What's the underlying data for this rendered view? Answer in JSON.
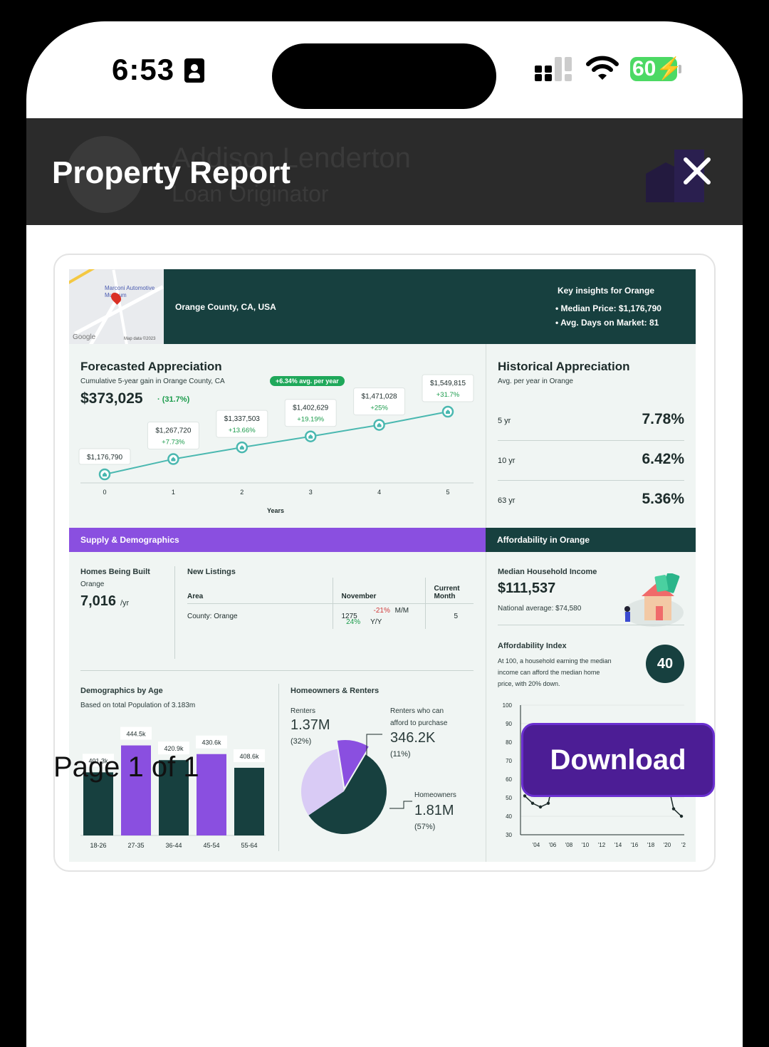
{
  "status_bar": {
    "time": "6:53",
    "battery": "60"
  },
  "header": {
    "title": "Property Report",
    "ghost_name": "Addison Lenderton",
    "ghost_role": "Loan Originator"
  },
  "report": {
    "map": {
      "place": "Marconi Automotive Museum",
      "google": "Google",
      "map_data": "Map data ©2023"
    },
    "location": "Orange County, CA, USA",
    "insights": {
      "title": "Key insights for Orange",
      "median_price": "• Median Price: $1,176,790",
      "avg_days": "• Avg. Days on Market: 81"
    },
    "forecast": {
      "title": "Forecasted Appreciation",
      "subtitle": "Cumulative 5-year gain in Orange County, CA",
      "badge": "+6.34% avg. per year",
      "gain": "$373,025",
      "gain_pct": "· (31.7%)",
      "xlabel": "Years"
    },
    "historical": {
      "title": "Historical Appreciation",
      "subtitle": "Avg. per year in Orange",
      "rows": [
        {
          "label": "5 yr",
          "value": "7.78%"
        },
        {
          "label": "10 yr",
          "value": "6.42%"
        },
        {
          "label": "63 yr",
          "value": "5.36%"
        }
      ]
    },
    "supply": {
      "band": "Supply & Demographics",
      "homes_built_title": "Homes Being Built",
      "homes_built_area": "Orange",
      "homes_built_value": "7,016",
      "homes_built_unit": "/yr",
      "listings_title": "New Listings",
      "col_area": "Area",
      "col_november": "November",
      "col_current": "Current Month",
      "row_area": "County: Orange",
      "row_november": "1275",
      "mm": "-21%",
      "mm_label": "M/M",
      "yy": "24%",
      "yy_label": "Y/Y",
      "row_current": "5"
    },
    "demographics": {
      "title": "Demographics by Age",
      "subtitle": "Based on total Population of 3.183m"
    },
    "owners": {
      "title": "Homeowners & Renters",
      "renters_label": "Renters",
      "renters_value": "1.37M",
      "renters_pct": "(32%)",
      "afford_label_1": "Renters who can",
      "afford_label_2": "afford to purchase",
      "afford_value": "346.2K",
      "afford_pct": "(11%)",
      "owners_label": "Homeowners",
      "owners_value": "1.81M",
      "owners_pct": "(57%)"
    },
    "affordability": {
      "band": "Affordability in Orange",
      "income_title": "Median Household Income",
      "income_value": "$111,537",
      "national": "National average: $74,580",
      "index_title": "Affordability Index",
      "index_desc_1": "At 100, a household earning the median",
      "index_desc_2": "income can afford the median home",
      "index_desc_3": "price, with 20% down.",
      "index_value": "40"
    }
  },
  "footer": {
    "page": "Page 1 of 1",
    "download": "Download"
  },
  "colors": {
    "teal": "#17403f",
    "purple": "#8a4fe0",
    "accent_button": "#4c1d95",
    "green": "#1fa85a"
  },
  "chart_data": [
    {
      "type": "line",
      "title": "Forecasted Appreciation",
      "xlabel": "Years",
      "x": [
        0,
        1,
        2,
        3,
        4,
        5
      ],
      "values": [
        1176790,
        1267720,
        1337503,
        1402629,
        1471028,
        1549815
      ],
      "labels": [
        "$1,176,790",
        "$1,267,720",
        "$1,337,503",
        "$1,402,629",
        "$1,471,028",
        "$1,549,815"
      ],
      "changes": [
        "",
        "+7.73%",
        "+13.66%",
        "+19.19%",
        "+25%",
        "+31.7%"
      ]
    },
    {
      "type": "bar",
      "title": "Demographics by Age",
      "categories": [
        "18-26",
        "27-35",
        "36-44",
        "45-54",
        "55-64"
      ],
      "values": [
        401.3,
        444.5,
        420.9,
        430.6,
        408.6
      ],
      "labels": [
        "401.3k",
        "444.5k",
        "420.9k",
        "430.6k",
        "408.6k"
      ],
      "colors": [
        "#17403f",
        "#8a4fe0",
        "#17403f",
        "#8a4fe0",
        "#17403f"
      ]
    },
    {
      "type": "pie",
      "title": "Homeowners & Renters",
      "slices": [
        {
          "name": "Homeowners",
          "value": 57,
          "color": "#17403f"
        },
        {
          "name": "Renters",
          "value": 32,
          "color": "#d9cbf5"
        },
        {
          "name": "Renters who can afford to purchase",
          "value": 11,
          "color": "#8a4fe0"
        }
      ]
    },
    {
      "type": "line",
      "title": "Affordability Index",
      "ylim": [
        30,
        100
      ],
      "yticks": [
        30,
        40,
        50,
        60,
        70,
        80,
        90,
        100
      ],
      "xticks": [
        "'04",
        "'06",
        "'08",
        "'10",
        "'12",
        "'14",
        "'16",
        "'18",
        "'20",
        "'2"
      ],
      "values": [
        51,
        47,
        45,
        47,
        67,
        76,
        72,
        80,
        85,
        70,
        66,
        69,
        67,
        70,
        67,
        64,
        70,
        72,
        63,
        44,
        40
      ]
    }
  ]
}
